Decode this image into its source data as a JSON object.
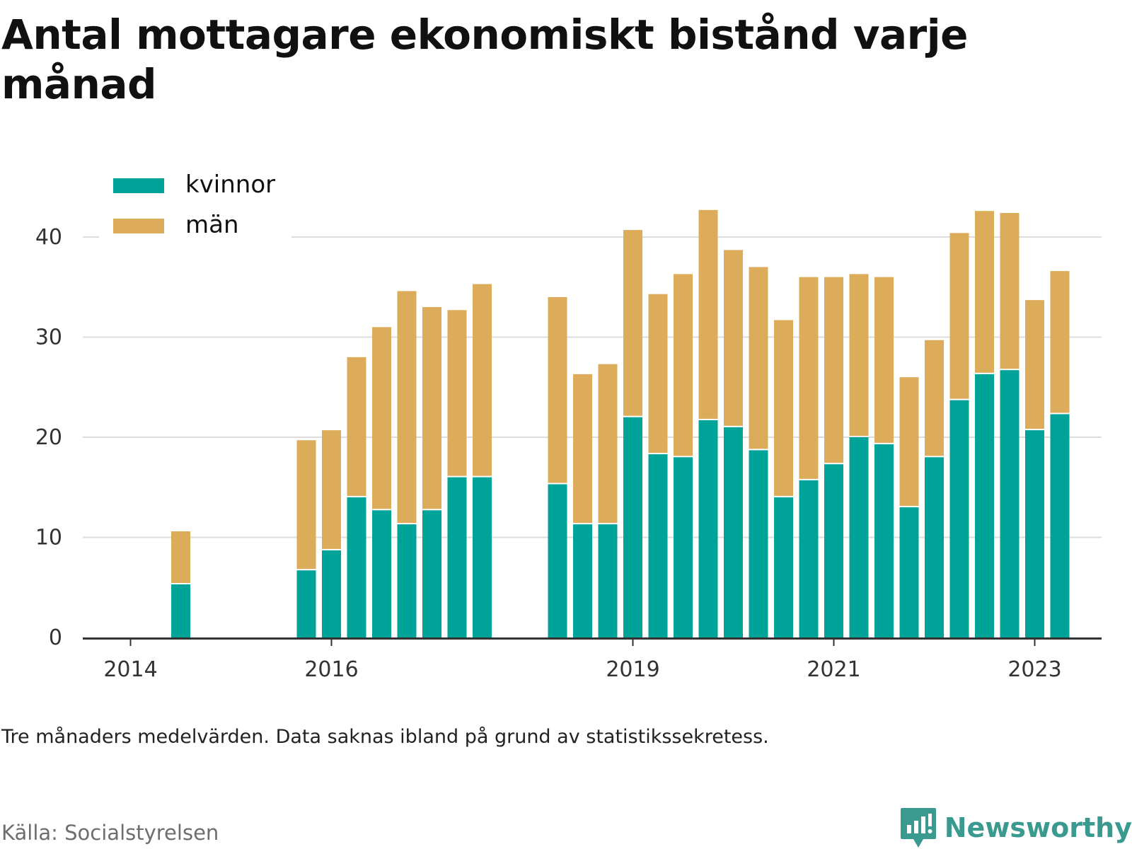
{
  "title": "Antal mottagare ekonomiskt bistånd varje månad",
  "note": "Tre månaders medelvärden. Data saknas ibland på grund av statistikssekretess.",
  "source": "Källa: Socialstyrelsen",
  "brand": {
    "name": "Newsworthy",
    "icon": "newsworthy-chart-logo-icon",
    "color": "#3a9a8f"
  },
  "colors": {
    "kvinnor": "#00a398",
    "man": "#dcac5a",
    "grid": "#dddddd",
    "axis": "#333333"
  },
  "chart_data": {
    "type": "bar",
    "stacked": true,
    "x_ticks": [
      "2014",
      "2016",
      "2019",
      "2021",
      "2023"
    ],
    "y_ticks": [
      "0",
      "10",
      "20",
      "30",
      "40"
    ],
    "ylim": [
      0,
      43
    ],
    "grid": true,
    "legend_position": "top-left",
    "series": [
      {
        "name": "kvinnor",
        "color": "#00a398",
        "values": [
          5.3,
          6.7,
          8.7,
          14,
          12.7,
          11.3,
          12.7,
          16,
          16,
          15.3,
          11.3,
          11.3,
          22,
          18.3,
          18,
          21.7,
          21,
          18.7,
          14,
          15.7,
          17.3,
          20,
          19.3,
          13,
          18,
          23.7,
          26.3,
          26.7,
          20.7,
          22.3
        ]
      },
      {
        "name": "män",
        "color": "#dcac5a",
        "values": [
          5.3,
          13,
          12,
          14,
          18.3,
          23.3,
          20.3,
          16.7,
          19.3,
          18.7,
          15,
          16,
          18.7,
          16,
          18.3,
          21,
          17.7,
          18.3,
          17.7,
          20.3,
          18.7,
          16.3,
          16.7,
          13,
          11.7,
          16.7,
          16.3,
          15.7,
          13,
          14.3
        ]
      }
    ],
    "bar_slots": [
      2,
      7,
      8,
      9,
      10,
      11,
      12,
      13,
      14,
      17,
      18,
      19,
      20,
      21,
      22,
      23,
      24,
      25,
      26,
      27,
      28,
      29,
      30,
      31,
      32,
      33,
      34,
      35,
      36,
      37
    ]
  }
}
